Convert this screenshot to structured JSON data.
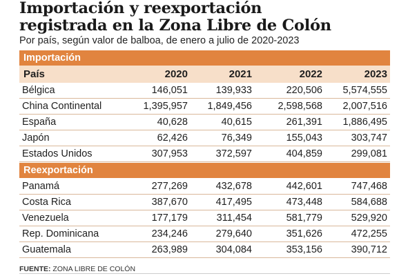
{
  "title_line1": "Importación y reexportación",
  "title_line2": "registrada en la Zona Libre de Colón",
  "subtitle": "Por país, según valor de balboa, de enero a julio de 2020-2023",
  "sections": {
    "importacion": {
      "label": "Importación",
      "header": {
        "pais": "País",
        "years": [
          "2020",
          "2021",
          "2022",
          "2023"
        ]
      },
      "rows": [
        {
          "pais": "Bélgica",
          "values": [
            "146,051",
            "139,933",
            "220,506",
            "5,574,555"
          ]
        },
        {
          "pais": "China Continental",
          "values": [
            "1,395,957",
            "1,849,456",
            "2,598,568",
            "2,007,516"
          ]
        },
        {
          "pais": "España",
          "values": [
            "40,628",
            "40,615",
            "261,391",
            "1,886,495"
          ]
        },
        {
          "pais": "Japón",
          "values": [
            "62,426",
            "76,349",
            "155,043",
            "303,747"
          ]
        },
        {
          "pais": "Estados Unidos",
          "values": [
            "307,953",
            "372,597",
            "404,859",
            "299,081"
          ]
        }
      ]
    },
    "reexportacion": {
      "label": "Reexportación",
      "rows": [
        {
          "pais": "Panamá",
          "values": [
            "277,269",
            "432,678",
            "442,601",
            "747,468"
          ]
        },
        {
          "pais": "Costa Rica",
          "values": [
            "387,670",
            "417,495",
            "473,448",
            "584,688"
          ]
        },
        {
          "pais": "Venezuela",
          "values": [
            "177,179",
            "311,454",
            "581,779",
            "529,920"
          ]
        },
        {
          "pais": "Rep. Dominicana",
          "values": [
            "234,246",
            "279,640",
            "351,626",
            "472,255"
          ]
        },
        {
          "pais": "Guatemala",
          "values": [
            "263,989",
            "304,084",
            "353,156",
            "390,712"
          ]
        }
      ]
    }
  },
  "source": {
    "label": "FUENTE:",
    "text": "ZONA LIBRE DE COLÓN"
  },
  "colors": {
    "section_bar": "#e1843f",
    "header_bg": "#f7dfc9",
    "row_border": "#d9b79a"
  }
}
